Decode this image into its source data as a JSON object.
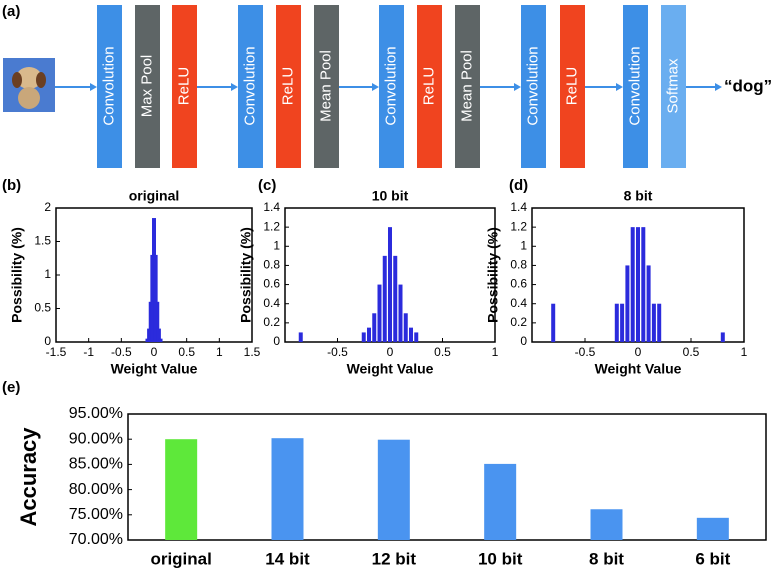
{
  "diagram": {
    "panel_label": "(a)",
    "blocks": [
      {
        "label": "Convolution",
        "color": "#3d8fe6"
      },
      {
        "label": "Max Pool",
        "color": "#5e6566"
      },
      {
        "label": "ReLU",
        "color": "#f0441f"
      },
      {
        "label": "Convolution",
        "color": "#3d8fe6"
      },
      {
        "label": "ReLU",
        "color": "#f0441f"
      },
      {
        "label": "Mean Pool",
        "color": "#5e6566"
      },
      {
        "label": "Convolution",
        "color": "#3d8fe6"
      },
      {
        "label": "ReLU",
        "color": "#f0441f"
      },
      {
        "label": "Mean Pool",
        "color": "#5e6566"
      },
      {
        "label": "Convolution",
        "color": "#3d8fe6"
      },
      {
        "label": "ReLU",
        "color": "#f0441f"
      },
      {
        "label": "Convolution",
        "color": "#3d8fe6"
      },
      {
        "label": "Softmax",
        "color": "#6aaef0"
      }
    ],
    "output": "“dog”"
  },
  "chart_data": [
    {
      "type": "bar",
      "panel_label": "(b)",
      "title": "original",
      "x_label": "Weight Value",
      "y_label": "Possibility (%)",
      "x": [
        -0.1,
        -0.075,
        -0.05,
        -0.025,
        0,
        0.025,
        0.05,
        0.075,
        0.1
      ],
      "values": [
        0.05,
        0.2,
        0.6,
        1.3,
        1.85,
        1.3,
        0.6,
        0.2,
        0.05
      ],
      "color": "#2b2bdc",
      "xlim": [
        -1.5,
        1.5
      ],
      "xticks": [
        -1.5,
        -1,
        -0.5,
        0,
        0.5,
        1,
        1.5
      ],
      "ylim": [
        0,
        2
      ],
      "yticks": [
        0,
        0.5,
        1,
        1.5,
        2
      ]
    },
    {
      "type": "bar",
      "panel_label": "(c)",
      "title": "10 bit",
      "x_label": "Weight Value",
      "y_label": "Possibility (%)",
      "x": [
        -0.85,
        -0.25,
        -0.2,
        -0.15,
        -0.1,
        -0.05,
        0,
        0.05,
        0.1,
        0.15,
        0.2,
        0.25
      ],
      "values": [
        0.1,
        0.1,
        0.15,
        0.3,
        0.6,
        0.9,
        1.2,
        0.9,
        0.6,
        0.3,
        0.15,
        0.1
      ],
      "color": "#2b2bdc",
      "xlim": [
        -1,
        1
      ],
      "xticks": [
        -0.5,
        0,
        0.5,
        1
      ],
      "ylim": [
        0,
        1.4
      ],
      "yticks": [
        0,
        0.2,
        0.4,
        0.6,
        0.8,
        1,
        1.2,
        1.4
      ]
    },
    {
      "type": "bar",
      "panel_label": "(d)",
      "title": "8 bit",
      "x_label": "Weight Value",
      "y_label": "Possibility (%)",
      "x": [
        -0.8,
        -0.2,
        -0.15,
        -0.1,
        -0.05,
        0,
        0.05,
        0.1,
        0.15,
        0.2,
        0.8
      ],
      "values": [
        0.4,
        0.4,
        0.4,
        0.8,
        1.2,
        1.2,
        1.2,
        0.8,
        0.4,
        0.4,
        0.1
      ],
      "color": "#2b2bdc",
      "xlim": [
        -1,
        1
      ],
      "xticks": [
        -0.5,
        0,
        0.5,
        1
      ],
      "ylim": [
        0,
        1.4
      ],
      "yticks": [
        0,
        0.2,
        0.4,
        0.6,
        0.8,
        1,
        1.2,
        1.4
      ]
    },
    {
      "type": "column",
      "panel_label": "(e)",
      "y_label": "Accuracy",
      "categories": [
        "original",
        "14 bit",
        "12 bit",
        "10 bit",
        "8 bit",
        "6 bit"
      ],
      "values": [
        90.0,
        90.2,
        89.9,
        85.1,
        76.1,
        74.4
      ],
      "colors": [
        "#5ee83a",
        "#4a94f0",
        "#4a94f0",
        "#4a94f0",
        "#4a94f0",
        "#4a94f0"
      ],
      "ylim": [
        70,
        95
      ],
      "yticks": [
        {
          "value": 70,
          "label": "70.00%"
        },
        {
          "value": 75,
          "label": "75.00%"
        },
        {
          "value": 80,
          "label": "80.00%"
        },
        {
          "value": 85,
          "label": "85.00%"
        },
        {
          "value": 90,
          "label": "90.00%"
        },
        {
          "value": 95,
          "label": "95.00%"
        }
      ]
    }
  ]
}
